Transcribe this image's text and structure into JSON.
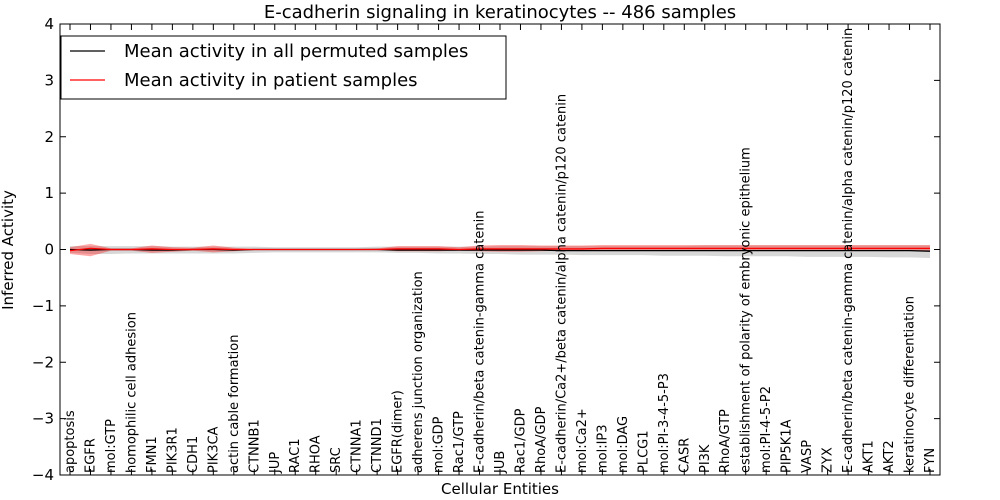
{
  "chart_data": {
    "type": "line",
    "title": "E-cadherin signaling in keratinocytes -- 486 samples",
    "xlabel": "Cellular Entities",
    "ylabel": "Inferred Activity",
    "ylim": [
      -4,
      4
    ],
    "yticks": [
      -4,
      -3,
      -2,
      -1,
      0,
      1,
      2,
      3,
      4
    ],
    "legend_position": "top-left",
    "categories": [
      "apoptosis",
      "EGFR",
      "mol:GTP",
      "homophilic cell adhesion",
      "FMN1",
      "PIK3R1",
      "CDH1",
      "PIK3CA",
      "actin cable formation",
      "CTNNB1",
      "JUP",
      "RAC1",
      "RHOA",
      "SRC",
      "CTNNA1",
      "CTNND1",
      "EGFR(dimer)",
      "adherens junction organization",
      "mol:GDP",
      "Rac1/GTP",
      "E-cadherin/beta catenin-gamma catenin",
      "JUB",
      "Rac1/GDP",
      "RhoA/GDP",
      "E-cadherin/Ca2+/beta catenin/alpha catenin/p120 catenin",
      "mol:Ca2+",
      "mol:IP3",
      "mol:DAG",
      "PLCG1",
      "mol:PI-3-4-5-P3",
      "CASR",
      "PI3K",
      "RhoA/GTP",
      "establishment of polarity of embryonic epithelium",
      "mol:PI-4-5-P2",
      "PIP5K1A",
      "VASP",
      "ZYX",
      "E-cadherin/beta catenin-gamma catenin/alpha catenin/p120 catenin",
      "AKT1",
      "AKT2",
      "keratinocyte differentiation",
      "FYN"
    ],
    "series": [
      {
        "name": "Mean activity in all permuted samples",
        "color": "#000000",
        "values": [
          0.0,
          -0.01,
          0.0,
          0.0,
          -0.01,
          -0.01,
          0.0,
          0.0,
          -0.01,
          0.0,
          0.0,
          0.0,
          0.0,
          0.0,
          0.0,
          0.0,
          -0.01,
          -0.01,
          -0.01,
          -0.01,
          -0.01,
          -0.01,
          -0.01,
          -0.01,
          -0.02,
          -0.02,
          -0.02,
          -0.02,
          -0.02,
          -0.02,
          -0.02,
          -0.02,
          -0.02,
          -0.02,
          -0.02,
          -0.02,
          -0.02,
          -0.02,
          -0.02,
          -0.02,
          -0.02,
          -0.02,
          -0.03
        ],
        "band_lower": [
          -0.06,
          -0.08,
          -0.08,
          -0.07,
          -0.07,
          -0.07,
          -0.07,
          -0.07,
          -0.07,
          -0.06,
          -0.05,
          -0.05,
          -0.05,
          -0.05,
          -0.05,
          -0.05,
          -0.06,
          -0.06,
          -0.07,
          -0.07,
          -0.08,
          -0.08,
          -0.09,
          -0.09,
          -0.09,
          -0.1,
          -0.1,
          -0.1,
          -0.1,
          -0.11,
          -0.11,
          -0.11,
          -0.12,
          -0.12,
          -0.12,
          -0.12,
          -0.13,
          -0.13,
          -0.13,
          -0.13,
          -0.14,
          -0.14,
          -0.15
        ],
        "band_upper": [
          0.06,
          0.06,
          0.06,
          0.06,
          0.06,
          0.05,
          0.05,
          0.05,
          0.05,
          0.05,
          0.04,
          0.04,
          0.04,
          0.04,
          0.04,
          0.05,
          0.05,
          0.05,
          0.05,
          0.05,
          0.05,
          0.06,
          0.06,
          0.06,
          0.06,
          0.06,
          0.06,
          0.06,
          0.06,
          0.06,
          0.06,
          0.07,
          0.07,
          0.07,
          0.07,
          0.07,
          0.07,
          0.07,
          0.07,
          0.07,
          0.07,
          0.07,
          0.07
        ]
      },
      {
        "name": "Mean activity in patient samples",
        "color": "#ff0000",
        "values": [
          -0.02,
          0.02,
          0.0,
          0.0,
          0.01,
          0.0,
          0.0,
          0.01,
          0.0,
          0.0,
          0.0,
          0.0,
          0.0,
          0.0,
          0.0,
          0.0,
          0.01,
          0.01,
          0.01,
          0.0,
          0.01,
          0.01,
          0.01,
          0.01,
          0.01,
          0.01,
          0.02,
          0.02,
          0.02,
          0.02,
          0.02,
          0.02,
          0.02,
          0.02,
          0.02,
          0.02,
          0.02,
          0.02,
          0.02,
          0.02,
          0.02,
          0.02,
          0.02
        ],
        "band_lower": [
          -0.08,
          -0.12,
          -0.02,
          -0.02,
          -0.06,
          -0.04,
          -0.02,
          -0.05,
          -0.03,
          -0.01,
          -0.01,
          -0.01,
          -0.01,
          -0.01,
          -0.01,
          -0.01,
          -0.03,
          -0.03,
          -0.03,
          -0.02,
          -0.03,
          -0.04,
          -0.04,
          -0.03,
          -0.02,
          -0.02,
          -0.02,
          -0.02,
          -0.02,
          -0.02,
          -0.02,
          -0.02,
          -0.02,
          -0.02,
          -0.02,
          -0.02,
          -0.02,
          -0.02,
          -0.02,
          -0.02,
          -0.02,
          -0.02,
          -0.02
        ],
        "band_upper": [
          0.04,
          0.1,
          0.02,
          0.02,
          0.07,
          0.04,
          0.03,
          0.07,
          0.03,
          0.01,
          0.01,
          0.01,
          0.01,
          0.01,
          0.01,
          0.02,
          0.06,
          0.06,
          0.06,
          0.04,
          0.07,
          0.08,
          0.08,
          0.07,
          0.07,
          0.07,
          0.08,
          0.08,
          0.08,
          0.08,
          0.08,
          0.08,
          0.08,
          0.08,
          0.08,
          0.08,
          0.08,
          0.08,
          0.08,
          0.08,
          0.08,
          0.08,
          0.08
        ]
      }
    ]
  }
}
